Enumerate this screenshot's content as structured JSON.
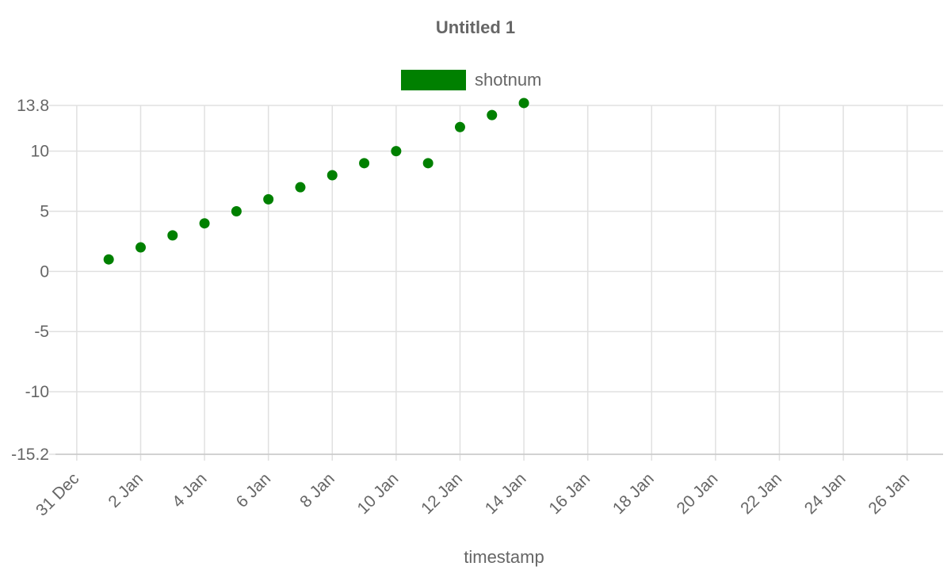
{
  "colors": {
    "series": "#008000",
    "text": "#666666",
    "grid": "#e0e0e0"
  },
  "chart_data": {
    "type": "scatter",
    "title": "Untitled 1",
    "xlabel": "timestamp",
    "ylabel": "",
    "legend_position": "top",
    "grid": true,
    "ylim": [
      -15.2,
      13.8
    ],
    "xlim": [
      "2016-12-30T08:00",
      "2017-01-27T03:00"
    ],
    "y_ticks": [
      "-15.2",
      "-10",
      "-5",
      "0",
      "5",
      "10",
      "13.8"
    ],
    "x_ticks": [
      {
        "date": "2016-12-31",
        "label": "31 Dec"
      },
      {
        "date": "2017-01-02",
        "label": "2 Jan"
      },
      {
        "date": "2017-01-04",
        "label": "4 Jan"
      },
      {
        "date": "2017-01-06",
        "label": "6 Jan"
      },
      {
        "date": "2017-01-08",
        "label": "8 Jan"
      },
      {
        "date": "2017-01-10",
        "label": "10 Jan"
      },
      {
        "date": "2017-01-12",
        "label": "12 Jan"
      },
      {
        "date": "2017-01-14",
        "label": "14 Jan"
      },
      {
        "date": "2017-01-16",
        "label": "16 Jan"
      },
      {
        "date": "2017-01-18",
        "label": "18 Jan"
      },
      {
        "date": "2017-01-20",
        "label": "20 Jan"
      },
      {
        "date": "2017-01-22",
        "label": "22 Jan"
      },
      {
        "date": "2017-01-24",
        "label": "24 Jan"
      },
      {
        "date": "2017-01-26",
        "label": "26 Jan"
      }
    ],
    "series": [
      {
        "name": "shotnum",
        "color": "#008000",
        "points": [
          {
            "x": "2017-01-01",
            "y": 1
          },
          {
            "x": "2017-01-02",
            "y": 2
          },
          {
            "x": "2017-01-03",
            "y": 3
          },
          {
            "x": "2017-01-04",
            "y": 4
          },
          {
            "x": "2017-01-05",
            "y": 5
          },
          {
            "x": "2017-01-06",
            "y": 6
          },
          {
            "x": "2017-01-07",
            "y": 7
          },
          {
            "x": "2017-01-08",
            "y": 8
          },
          {
            "x": "2017-01-09",
            "y": 9
          },
          {
            "x": "2017-01-10",
            "y": 10
          },
          {
            "x": "2017-01-11",
            "y": 9
          },
          {
            "x": "2017-01-12",
            "y": 12
          },
          {
            "x": "2017-01-13",
            "y": 13
          },
          {
            "x": "2017-01-14",
            "y": 14
          }
        ]
      }
    ]
  }
}
